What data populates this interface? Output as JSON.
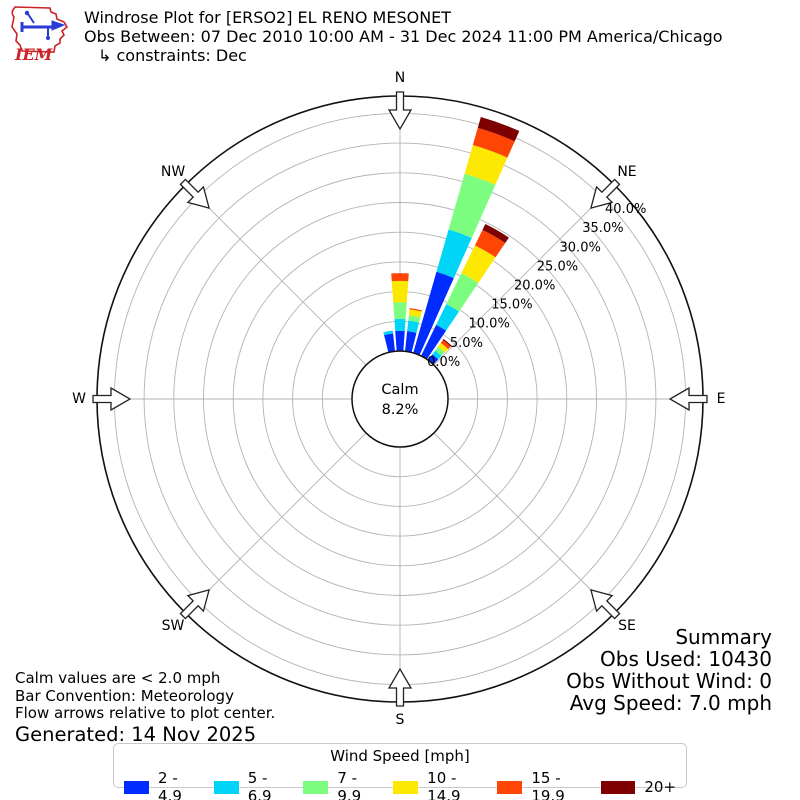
{
  "header": {
    "logo_text": "IEM",
    "title": "Windrose Plot for [ERSO2] EL RENO MESONET",
    "subtitle": "Obs Between: 07 Dec 2010 10:00 AM - 31 Dec 2024 11:00 PM America/Chicago",
    "constraints": "↳ constraints: Dec"
  },
  "summary": {
    "title": "Summary",
    "obs_used": "Obs Used: 10430",
    "obs_without_wind": "Obs Without Wind: 0",
    "avg_speed": "Avg Speed: 7.0 mph"
  },
  "notes": {
    "calm_note": "Calm values are < 2.0 mph",
    "convention_note": "Bar Convention: Meteorology",
    "arrows_note": "Flow arrows relative to plot center.",
    "generated": "Generated: 14 Nov 2025"
  },
  "legend": {
    "title": "Wind Speed [mph]"
  },
  "chart_data": {
    "type": "windrose",
    "calm_label": "Calm",
    "calm_percent_text": "8.2%",
    "compass_labels": [
      "N",
      "NE",
      "E",
      "SE",
      "S",
      "SW",
      "W",
      "NW"
    ],
    "compass_angles_deg": [
      0,
      45,
      90,
      135,
      180,
      225,
      270,
      315
    ],
    "ring_percents": [
      0,
      5,
      10,
      15,
      20,
      25,
      30,
      35,
      40
    ],
    "ring_labels": [
      "0.0%",
      "5.0%",
      "10.0%",
      "15.0%",
      "20.0%",
      "25.0%",
      "30.0%",
      "35.0%",
      "40.0%"
    ],
    "speed_bins": [
      {
        "label": "2 - 4.9",
        "color": "#012cff"
      },
      {
        "label": "5 - 6.9",
        "color": "#00d5f7"
      },
      {
        "label": "7 - 9.9",
        "color": "#7cfd7f"
      },
      {
        "label": "10 - 14.9",
        "color": "#fde801"
      },
      {
        "label": "15 - 19.9",
        "color": "#ff4503"
      },
      {
        "label": "20+",
        "color": "#7f0000"
      }
    ],
    "sector_width_deg": 8,
    "bars": [
      {
        "direction_deg": 350,
        "values": [
          3.0,
          0.5,
          0.0,
          0.0,
          0.0,
          0.0
        ]
      },
      {
        "direction_deg": 0,
        "values": [
          3.4,
          2.0,
          2.8,
          3.6,
          1.3,
          0.0
        ]
      },
      {
        "direction_deg": 10,
        "values": [
          3.4,
          1.8,
          0.9,
          1.0,
          0.2,
          0.0
        ]
      },
      {
        "direction_deg": 20,
        "values": [
          14.2,
          7.4,
          9.8,
          5.0,
          3.0,
          1.9
        ]
      },
      {
        "direction_deg": 30,
        "values": [
          5.8,
          3.9,
          5.8,
          5.2,
          2.9,
          1.1
        ]
      },
      {
        "direction_deg": 40,
        "values": [
          1.2,
          0.8,
          0.8,
          0.8,
          0.6,
          0.2
        ]
      }
    ],
    "grid_color": "#b3b3b3",
    "axis_color": "#111111"
  }
}
